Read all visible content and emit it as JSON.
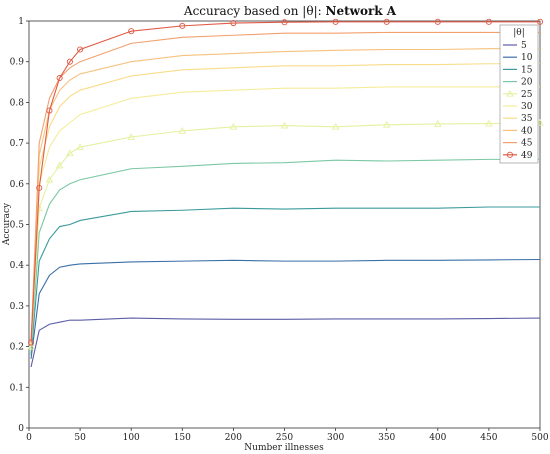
{
  "chart_data": {
    "type": "line",
    "title_prefix": "Accuracy based on |θ|: ",
    "title_bold": "Network A",
    "xlabel": "Number illnesses",
    "ylabel": "Accuracy",
    "xlim": [
      0,
      500
    ],
    "ylim": [
      0,
      1
    ],
    "xticks": [
      0,
      50,
      100,
      150,
      200,
      250,
      300,
      350,
      400,
      450,
      500
    ],
    "yticks": [
      0,
      0.1,
      0.2,
      0.3,
      0.4,
      0.5,
      0.6,
      0.7,
      0.8,
      0.9,
      1
    ],
    "legend_title": "|θ|",
    "legend_position": "top-right",
    "grid": false,
    "series": [
      {
        "name": "5",
        "color": "#5b5ea6",
        "marker": "none",
        "x": [
          2,
          10,
          20,
          30,
          40,
          50,
          100,
          150,
          200,
          250,
          300,
          350,
          400,
          450,
          500
        ],
        "y": [
          0.15,
          0.24,
          0.255,
          0.26,
          0.265,
          0.265,
          0.27,
          0.268,
          0.267,
          0.267,
          0.268,
          0.268,
          0.268,
          0.269,
          0.27
        ]
      },
      {
        "name": "10",
        "color": "#3b6fa8",
        "marker": "none",
        "x": [
          2,
          10,
          20,
          30,
          40,
          50,
          100,
          150,
          200,
          250,
          300,
          350,
          400,
          450,
          500
        ],
        "y": [
          0.17,
          0.33,
          0.375,
          0.395,
          0.4,
          0.403,
          0.408,
          0.41,
          0.412,
          0.41,
          0.41,
          0.412,
          0.412,
          0.413,
          0.414
        ]
      },
      {
        "name": "15",
        "color": "#3a9a9c",
        "marker": "none",
        "x": [
          2,
          10,
          20,
          30,
          40,
          50,
          100,
          150,
          200,
          250,
          300,
          350,
          400,
          450,
          500
        ],
        "y": [
          0.18,
          0.41,
          0.465,
          0.495,
          0.5,
          0.51,
          0.532,
          0.535,
          0.54,
          0.538,
          0.54,
          0.54,
          0.54,
          0.543,
          0.543
        ]
      },
      {
        "name": "20",
        "color": "#7cc8a4",
        "marker": "none",
        "x": [
          2,
          10,
          20,
          30,
          40,
          50,
          100,
          150,
          200,
          250,
          300,
          350,
          400,
          450,
          500
        ],
        "y": [
          0.19,
          0.48,
          0.55,
          0.585,
          0.6,
          0.61,
          0.637,
          0.643,
          0.65,
          0.652,
          0.658,
          0.656,
          0.658,
          0.66,
          0.66
        ]
      },
      {
        "name": "25",
        "color": "#e6f0a0",
        "marker": "triangle",
        "x": [
          2,
          10,
          20,
          30,
          40,
          50,
          100,
          150,
          200,
          250,
          300,
          350,
          400,
          450,
          500
        ],
        "y": [
          0.2,
          0.54,
          0.61,
          0.645,
          0.675,
          0.69,
          0.715,
          0.73,
          0.74,
          0.743,
          0.74,
          0.745,
          0.747,
          0.748,
          0.75
        ]
      },
      {
        "name": "30",
        "color": "#f5ec9a",
        "marker": "none",
        "x": [
          2,
          10,
          20,
          30,
          40,
          50,
          100,
          150,
          200,
          250,
          300,
          350,
          400,
          450,
          500
        ],
        "y": [
          0.2,
          0.6,
          0.69,
          0.73,
          0.75,
          0.77,
          0.81,
          0.825,
          0.83,
          0.835,
          0.835,
          0.838,
          0.838,
          0.838,
          0.838
        ]
      },
      {
        "name": "35",
        "color": "#f8dc8a",
        "marker": "none",
        "x": [
          2,
          10,
          20,
          30,
          40,
          50,
          100,
          150,
          200,
          250,
          300,
          350,
          400,
          450,
          500
        ],
        "y": [
          0.2,
          0.64,
          0.74,
          0.79,
          0.815,
          0.83,
          0.865,
          0.88,
          0.885,
          0.89,
          0.89,
          0.893,
          0.893,
          0.895,
          0.895
        ]
      },
      {
        "name": "40",
        "color": "#f7c27e",
        "marker": "none",
        "x": [
          2,
          10,
          20,
          30,
          40,
          50,
          100,
          150,
          200,
          250,
          300,
          350,
          400,
          450,
          500
        ],
        "y": [
          0.2,
          0.67,
          0.78,
          0.83,
          0.855,
          0.87,
          0.9,
          0.915,
          0.92,
          0.925,
          0.928,
          0.93,
          0.93,
          0.932,
          0.933
        ]
      },
      {
        "name": "45",
        "color": "#f2a06e",
        "marker": "none",
        "x": [
          2,
          10,
          20,
          30,
          40,
          50,
          100,
          150,
          200,
          250,
          300,
          350,
          400,
          450,
          500
        ],
        "y": [
          0.21,
          0.7,
          0.81,
          0.86,
          0.885,
          0.9,
          0.945,
          0.96,
          0.965,
          0.97,
          0.97,
          0.972,
          0.972,
          0.972,
          0.972
        ]
      },
      {
        "name": "49",
        "color": "#e05a45",
        "marker": "circle",
        "x": [
          2,
          10,
          20,
          30,
          40,
          50,
          100,
          150,
          200,
          250,
          300,
          350,
          400,
          450,
          500
        ],
        "y": [
          0.21,
          0.59,
          0.78,
          0.86,
          0.9,
          0.93,
          0.975,
          0.988,
          0.995,
          0.997,
          0.998,
          0.998,
          0.998,
          0.998,
          0.998
        ]
      }
    ]
  }
}
